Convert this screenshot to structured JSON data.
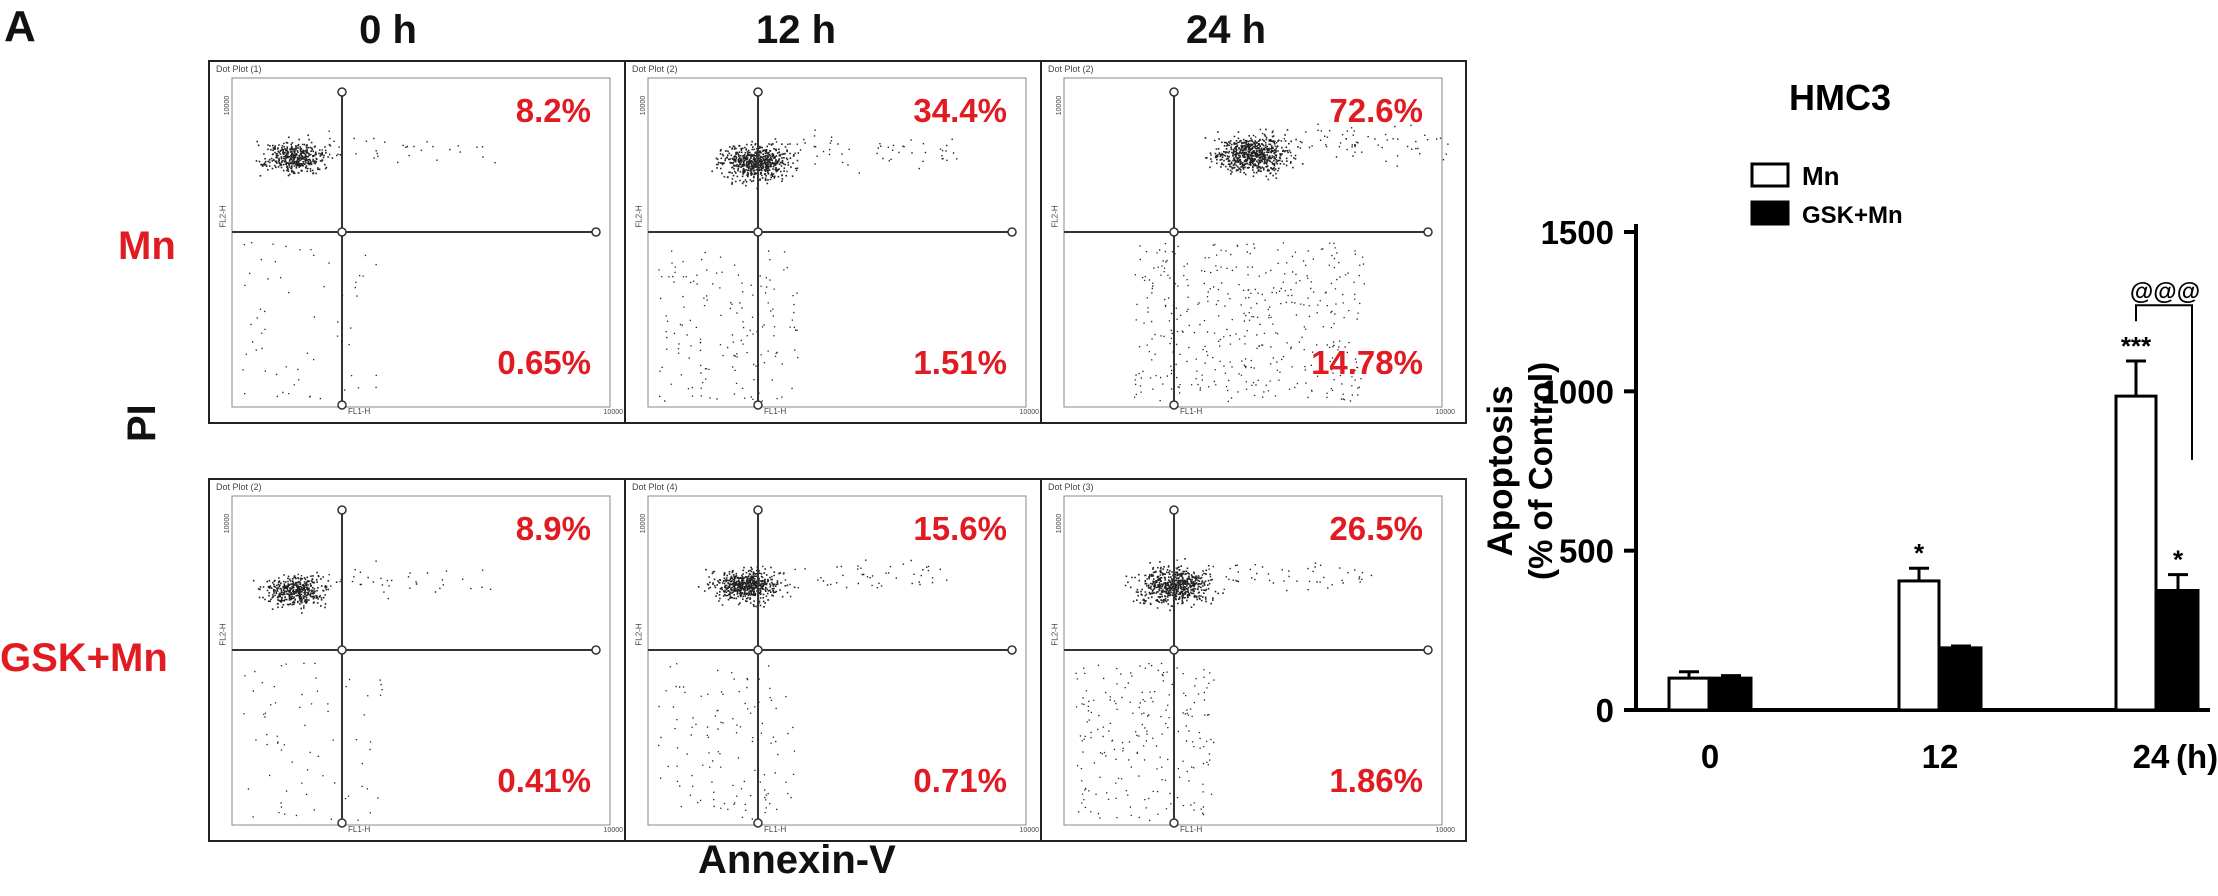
{
  "panel_letter": "A",
  "time_labels": [
    "0 h",
    "12 h",
    "24 h"
  ],
  "row_labels": [
    "Mn",
    "GSK+Mn"
  ],
  "y_axis_label": "PI",
  "x_axis_label": "Annexin-V",
  "dot_plots": [
    {
      "title": "Dot Plot (1)",
      "upper": "8.2%",
      "lower": "0.65%",
      "xaxis": "FL1-H",
      "yaxis": "FL2-H",
      "axis_max": "10000"
    },
    {
      "title": "Dot Plot (2)",
      "upper": "34.4%",
      "lower": "1.51%",
      "xaxis": "FL1-H",
      "yaxis": "FL2-H",
      "axis_max": "10000"
    },
    {
      "title": "Dot Plot (2)",
      "upper": "72.6%",
      "lower": "14.78%",
      "xaxis": "FL1-H",
      "yaxis": "FL2-H",
      "axis_max": "10000"
    },
    {
      "title": "Dot Plot (2)",
      "upper": "8.9%",
      "lower": "0.41%",
      "xaxis": "FL1-H",
      "yaxis": "FL2-H",
      "axis_max": "10000"
    },
    {
      "title": "Dot Plot (4)",
      "upper": "15.6%",
      "lower": "0.71%",
      "xaxis": "FL1-H",
      "yaxis": "FL2-H",
      "axis_max": "10000"
    },
    {
      "title": "Dot Plot (3)",
      "upper": "26.5%",
      "lower": "1.86%",
      "xaxis": "FL1-H",
      "yaxis": "FL2-H",
      "axis_max": "10000"
    }
  ],
  "colors": {
    "accent_red": "#e01b22",
    "bar_open": "#ffffff",
    "bar_filled": "#000000"
  },
  "chart_data": {
    "type": "bar",
    "title": "HMC3",
    "ylabel_line1": "Apoptosis",
    "ylabel_line2": "(% of Control)",
    "xlabel": "",
    "x_unit": "(h)",
    "categories": [
      "0",
      "12",
      "24"
    ],
    "ylim": [
      0,
      1500
    ],
    "yticks": [
      0,
      500,
      1000,
      1500
    ],
    "series": [
      {
        "name": "Mn",
        "values": [
          100,
          405,
          985
        ],
        "errors": [
          20,
          40,
          110
        ],
        "marks": [
          "",
          "*",
          "***"
        ],
        "fill": "#ffffff"
      },
      {
        "name": "GSK+Mn",
        "values": [
          100,
          195,
          375
        ],
        "errors": [
          8,
          6,
          50
        ],
        "marks": [
          "",
          "",
          "*"
        ],
        "fill": "#000000"
      }
    ],
    "comparison": {
      "category": 2,
      "label": "@@@"
    },
    "legend_position": "top-left"
  }
}
